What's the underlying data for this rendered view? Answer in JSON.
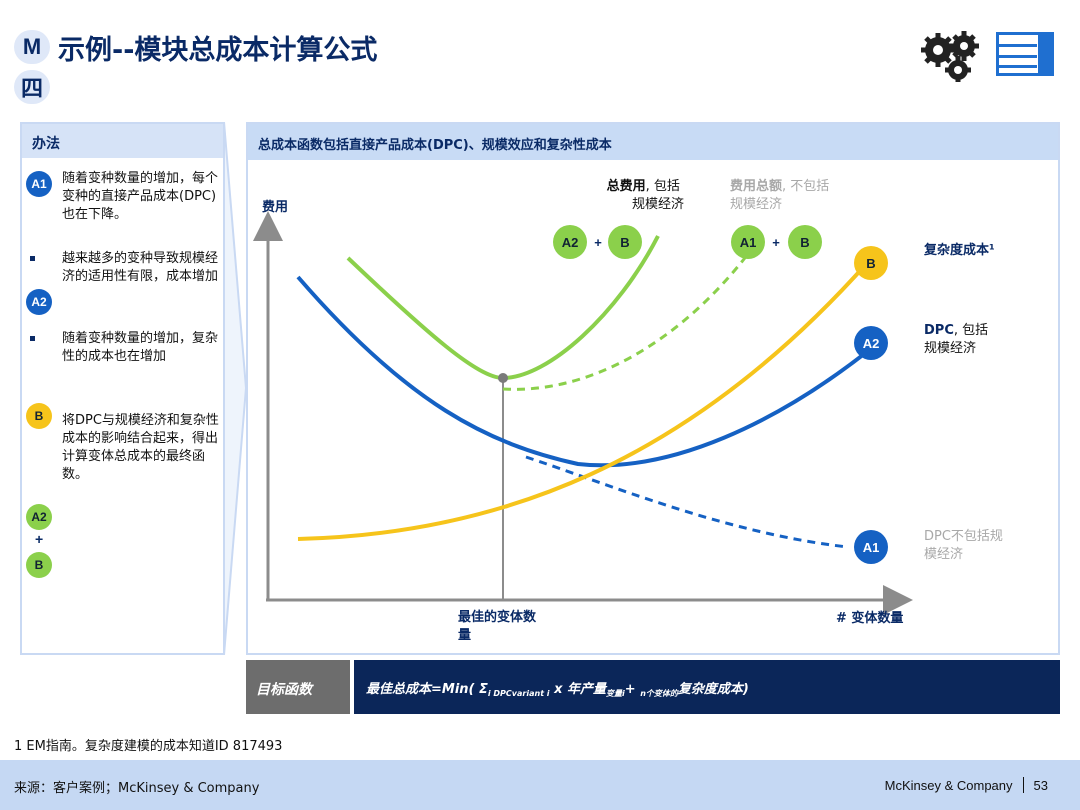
{
  "header": {
    "badge_m": "M",
    "badge_four": "四",
    "title": "示例--模块总成本计算公式"
  },
  "method": {
    "heading": "办法",
    "items": [
      {
        "marker": "A1",
        "text": "随着变种数量的增加，每个变种的直接产品成本(DPC)也在下降。"
      },
      {
        "marker": "bullet",
        "text": "越来越多的变种导致规模经济的适用性有限，成本增加"
      },
      {
        "marker": "A2"
      },
      {
        "marker": "bullet",
        "text": "随着变种数量的增加，复杂性的成本也在增加"
      },
      {
        "marker": "B",
        "text": "将DPC与规模经济和复杂性成本的影响结合起来，得出计算变体总成本的最终函数。"
      }
    ],
    "combo": {
      "top": "A2",
      "plus": "+",
      "bottom": "B"
    }
  },
  "chart_panel": {
    "heading": "总成本函数包括直接产品成本(DPC)、规模效应和复杂性成本",
    "y_axis_label": "费用",
    "x_axis_label": "# 变体数量",
    "optimum_label": "最佳的变体数量",
    "annotations": {
      "total_incl_bold": "总费用",
      "total_incl_rest": ", 包括规模经济",
      "total_excl_bold": "费用总额",
      "total_excl_rest": ", 不包括规模经济",
      "complexity": "复杂度成本¹",
      "dpc_incl_bold": "DPC",
      "dpc_incl_rest": ", 包括规模经济",
      "dpc_excl": "DPC不包括规模经济"
    },
    "pills": {
      "a2": "A2",
      "plus1": "+",
      "b1": "B",
      "a1": "A1",
      "plus2": "+",
      "b2": "B",
      "curve_b": "B",
      "curve_a2": "A2",
      "curve_a1": "A1"
    },
    "colors": {
      "blue": "#1561c3",
      "green": "#8bd04b",
      "yellow": "#f6c41b",
      "axis": "#8c8c8c"
    }
  },
  "objective": {
    "label": "目标函数",
    "formula_lead": "最佳总成本=Min( Σ",
    "sub1": "i DPCvariant i",
    "formula_mid": "x 年产量",
    "sub2": "变量i",
    "formula_plus": "+",
    "sub3": "n个变体的",
    "formula_tail": "复杂度成本)"
  },
  "footnote": "1 EM指南。复杂度建模的成本知道ID 817493",
  "footer": {
    "source": "来源：客户案例；McKinsey & Company",
    "company": "McKinsey & Company",
    "page": "53"
  }
}
